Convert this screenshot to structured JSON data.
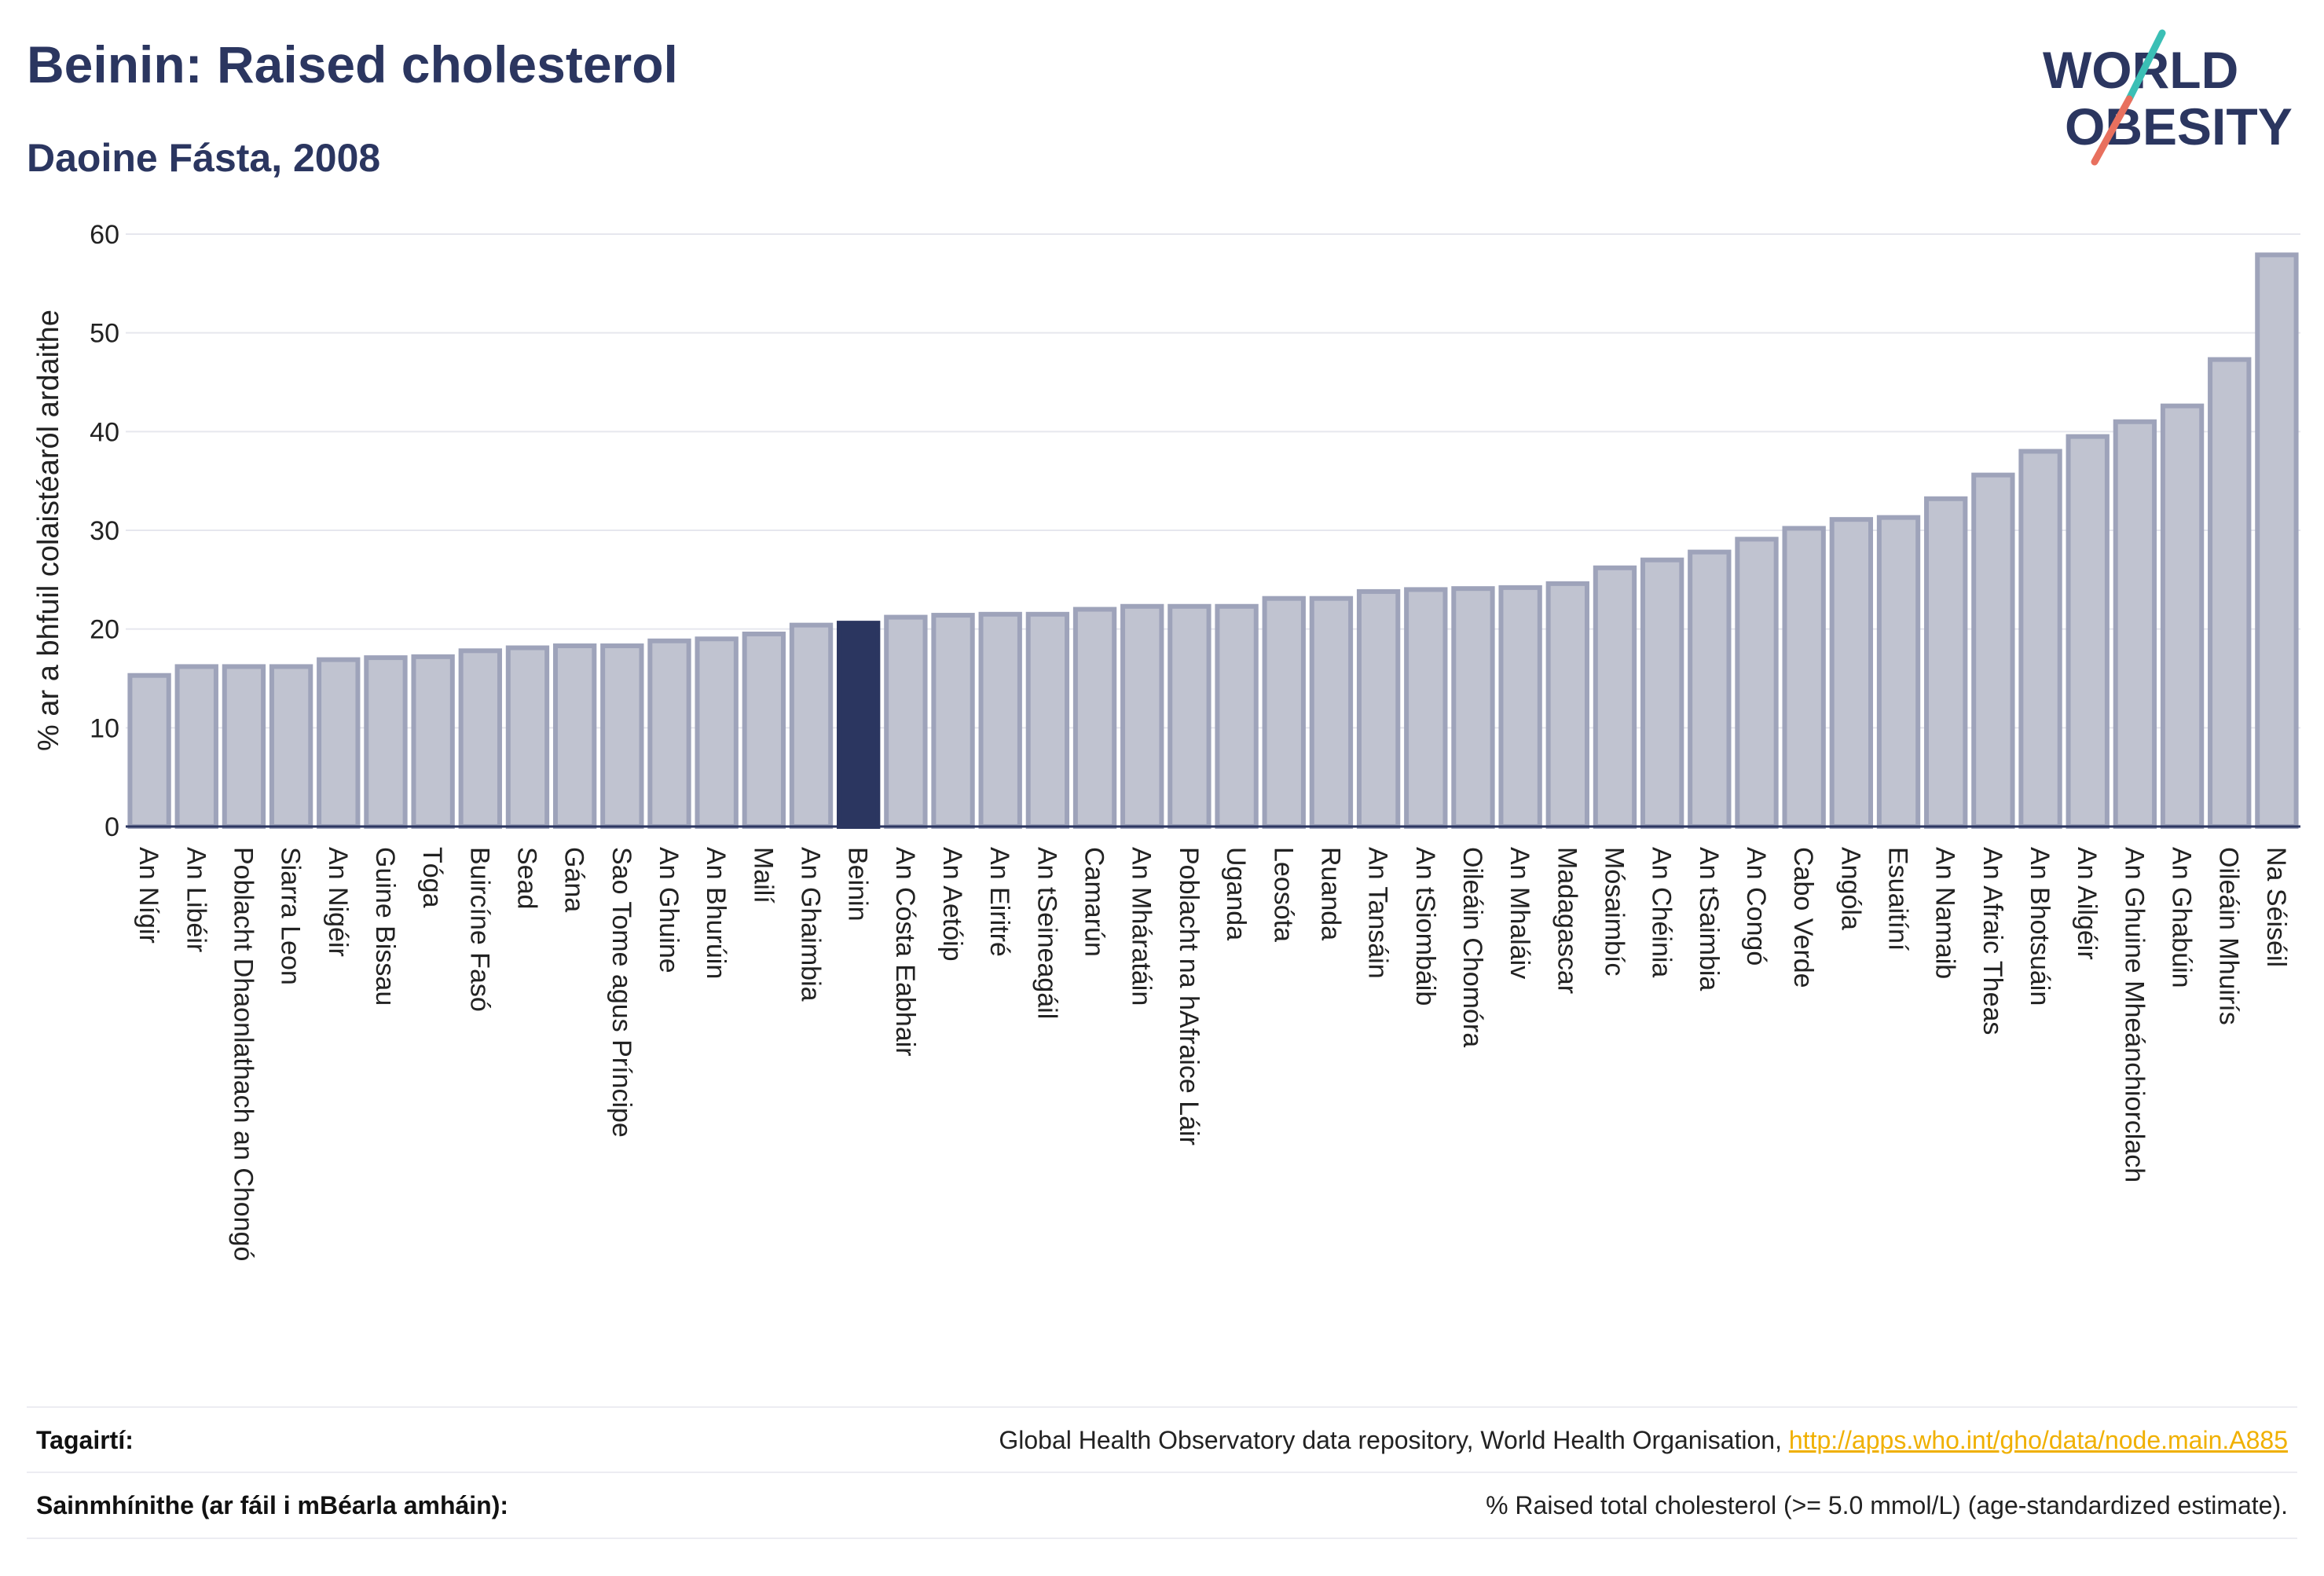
{
  "header": {
    "title": "Beinin: Raised cholesterol",
    "subtitle": "Daoine Fásta, 2008"
  },
  "logo": {
    "line1": "WORLD",
    "line2": "OBESITY"
  },
  "chart_data": {
    "type": "bar",
    "ylabel": "% ar a bhfuil colaistéaról ardaithe",
    "xlabel": "",
    "ylim": [
      0,
      60
    ],
    "yticks": [
      "0",
      "10",
      "20",
      "30",
      "40",
      "50",
      "60"
    ],
    "grid": true,
    "highlight": "Beinin",
    "colors": {
      "bar": "#c0c3d0",
      "bar_edge": "#9ea3ba",
      "highlight": "#2b3660"
    },
    "categories": [
      "An Nígir",
      "An Libéir",
      "Poblacht Dhaonlathach an Chongó",
      "Siarra Leon",
      "An Nigéir",
      "Guine Bissau",
      "Tóga",
      "Buircíne Fasó",
      "Sead",
      "Gána",
      "Sao Tome agus Príncipe",
      "An Ghuine",
      "An Bhurúin",
      "Mailí",
      "An Ghaimbia",
      "Beinin",
      "An Cósta Eabhair",
      "An Aetóip",
      "An Eiritré",
      "An tSeineagáil",
      "Camarún",
      "An Mháratáin",
      "Poblacht na hAfraice Láir",
      "Uganda",
      "Leosóta",
      "Ruanda",
      "An Tansáin",
      "An tSiombáib",
      "Oileáin Chomóra",
      "An Mhaláiv",
      "Madagascar",
      "Mósaimbíc",
      "An Chéinia",
      "An tSaimbia",
      "An Congó",
      "Cabo Verde",
      "Angóla",
      "Esuaitíní",
      "An Namaib",
      "An Afraic Theas",
      "An Bhotsuáin",
      "An Ailgéir",
      "An Ghuine Mheánchiorclach",
      "An Ghabúin",
      "Oileáin Mhuirís",
      "Na Séiséil"
    ],
    "values": [
      15.3,
      16.2,
      16.2,
      16.2,
      16.9,
      17.1,
      17.2,
      17.8,
      18.1,
      18.3,
      18.3,
      18.8,
      19.0,
      19.5,
      20.4,
      20.6,
      21.2,
      21.4,
      21.5,
      21.5,
      22.0,
      22.3,
      22.3,
      22.3,
      23.1,
      23.1,
      23.8,
      24.0,
      24.1,
      24.2,
      24.6,
      26.2,
      27.0,
      27.8,
      29.1,
      30.2,
      31.1,
      31.3,
      33.2,
      35.6,
      38.0,
      39.5,
      41.0,
      42.6,
      47.3,
      57.9
    ]
  },
  "footer": {
    "references_label": "Tagairtí:",
    "references_text": "Global Health Observatory data repository, World Health Organisation, ",
    "references_link": "http://apps.who.int/gho/data/node.main.A885",
    "definitions_label": "Sainmhínithe (ar fáil i mBéarla amháin):",
    "definitions_text": "% Raised total cholesterol (>= 5.0 mmol/L) (age-standardized estimate)."
  }
}
